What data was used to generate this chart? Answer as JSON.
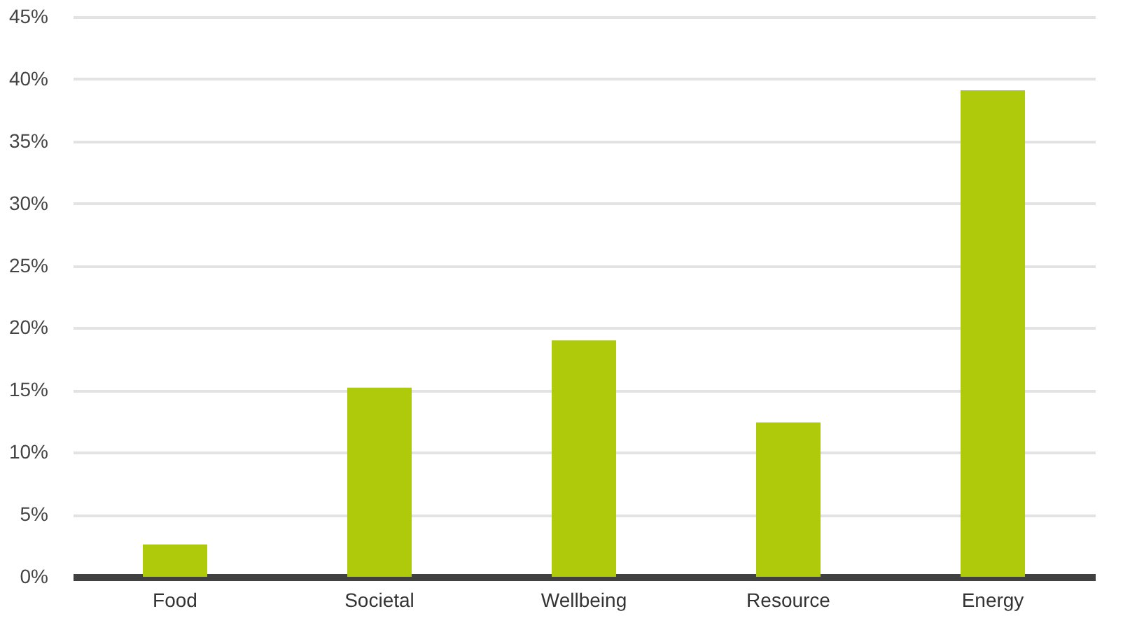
{
  "chart_data": {
    "type": "bar",
    "categories": [
      "Food",
      "Societal",
      "Wellbeing",
      "Resource",
      "Energy"
    ],
    "values": [
      2.6,
      15.2,
      19.0,
      12.4,
      39.1
    ],
    "color": "#afca0b",
    "ylim": [
      0,
      45
    ],
    "yticks": [
      {
        "value": 0,
        "label": "0%"
      },
      {
        "value": 5,
        "label": "5%"
      },
      {
        "value": 10,
        "label": "10%"
      },
      {
        "value": 15,
        "label": "15%"
      },
      {
        "value": 20,
        "label": "20%"
      },
      {
        "value": 25,
        "label": "25%"
      },
      {
        "value": 30,
        "label": "30%"
      },
      {
        "value": 35,
        "label": "35%"
      },
      {
        "value": 40,
        "label": "40%"
      },
      {
        "value": 45,
        "label": "45%"
      }
    ],
    "grid": "y"
  }
}
